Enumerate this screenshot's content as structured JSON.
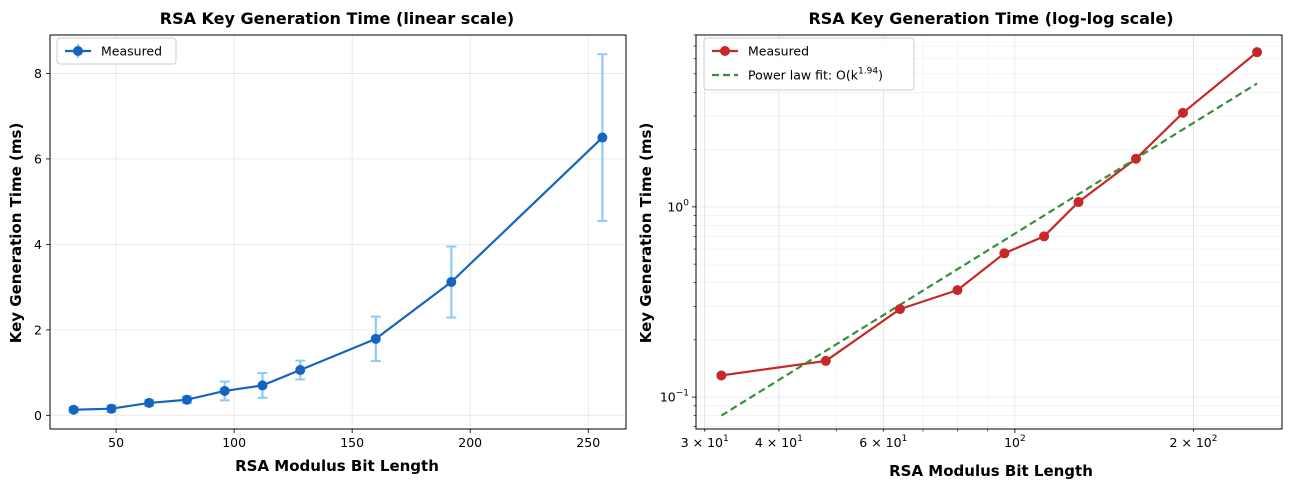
{
  "chart_data": [
    {
      "type": "line",
      "title": "RSA Key Generation Time (linear scale)",
      "xlabel": "RSA Modulus Bit Length",
      "ylabel": "Key Generation Time (ms)",
      "xlim": [
        22,
        266
      ],
      "ylim": [
        -0.32,
        8.9
      ],
      "xticks": [
        50,
        100,
        150,
        200,
        250
      ],
      "yticks": [
        0,
        2,
        4,
        6,
        8
      ],
      "grid": true,
      "legend_position": "top-left",
      "series": [
        {
          "name": "Measured",
          "color": "#1565c0",
          "errorbar_color": "#90caf9",
          "x": [
            32,
            48,
            64,
            80,
            96,
            112,
            128,
            160,
            192,
            256
          ],
          "y": [
            0.13,
            0.155,
            0.29,
            0.365,
            0.57,
            0.7,
            1.06,
            1.79,
            3.12,
            6.5
          ],
          "err": [
            0.06,
            0.08,
            0.07,
            0.08,
            0.22,
            0.29,
            0.22,
            0.52,
            0.83,
            1.95
          ]
        }
      ]
    },
    {
      "type": "line",
      "title": "RSA Key Generation Time (log-log scale)",
      "xlabel": "RSA Modulus Bit Length",
      "ylabel": "Key Generation Time (ms)",
      "xscale": "log",
      "yscale": "log",
      "xlim": [
        29,
        282
      ],
      "ylim": [
        0.068,
        8.0
      ],
      "xticks": [
        {
          "value": 30,
          "base": "3 × 10",
          "exp": "1"
        },
        {
          "value": 40,
          "base": "4 × 10",
          "exp": "1"
        },
        {
          "value": 60,
          "base": "6 × 10",
          "exp": "1"
        },
        {
          "value": 100,
          "base": "10",
          "exp": "2"
        },
        {
          "value": 200,
          "base": "2 × 10",
          "exp": "2"
        }
      ],
      "yticks": [
        {
          "value": 0.1,
          "base": "10",
          "exp": "−1"
        },
        {
          "value": 1,
          "base": "10",
          "exp": "0"
        }
      ],
      "grid": true,
      "legend_position": "top-left",
      "series": [
        {
          "name": "Measured",
          "color": "#c62828",
          "x": [
            32,
            48,
            64,
            80,
            96,
            112,
            128,
            160,
            192,
            256
          ],
          "y": [
            0.13,
            0.155,
            0.29,
            0.365,
            0.57,
            0.7,
            1.06,
            1.79,
            3.12,
            6.5
          ]
        },
        {
          "name": "Power law fit",
          "label_prefix": "Power law fit: O(k",
          "label_exp": "1.94",
          "label_suffix": ")",
          "color": "#388e3c",
          "dashed": true,
          "x": [
            32,
            256
          ],
          "y": [
            0.08,
            4.45
          ]
        }
      ]
    }
  ]
}
